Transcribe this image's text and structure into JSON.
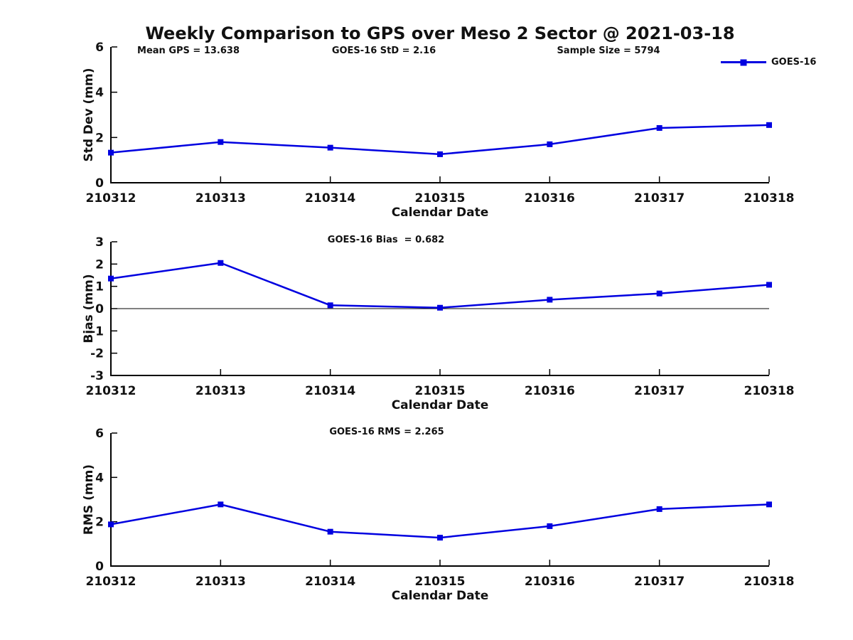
{
  "title": "Weekly Comparison to GPS over Meso 2 Sector @ 2021-03-18",
  "colors": {
    "line": "#0000E0",
    "axis": "#000000",
    "text": "#111111"
  },
  "legend": {
    "label": "GOES-16",
    "position": "top-right"
  },
  "annotations": {
    "mean_gps": "Mean GPS = 13.638",
    "std": "GOES-16 StD = 2.16",
    "sample_size": "Sample Size = 5794",
    "bias": "GOES-16 Bias  = 0.682",
    "rms": "GOES-16 RMS = 2.265"
  },
  "chart_data": [
    {
      "type": "line",
      "ylabel": "Std Dev (mm)",
      "xlabel": "Calendar Date",
      "categories": [
        "210312",
        "210313",
        "210314",
        "210315",
        "210316",
        "210317",
        "210318"
      ],
      "series": [
        {
          "name": "GOES-16",
          "values": [
            1.33,
            1.8,
            1.55,
            1.26,
            1.7,
            2.42,
            2.55
          ]
        }
      ],
      "ylim": [
        0,
        6
      ],
      "yticks": [
        0,
        2,
        4,
        6
      ],
      "grid": false,
      "zero_line": false,
      "legend_position": "top-right",
      "annotations": [
        "Mean GPS = 13.638",
        "GOES-16 StD = 2.16",
        "Sample Size = 5794"
      ]
    },
    {
      "type": "line",
      "ylabel": "Bias (mm)",
      "xlabel": "Calendar Date",
      "categories": [
        "210312",
        "210313",
        "210314",
        "210315",
        "210316",
        "210317",
        "210318"
      ],
      "series": [
        {
          "name": "GOES-16",
          "values": [
            1.35,
            2.05,
            0.15,
            0.04,
            0.4,
            0.68,
            1.07
          ]
        }
      ],
      "ylim": [
        -3,
        3
      ],
      "yticks": [
        -3,
        -2,
        -1,
        0,
        1,
        2,
        3
      ],
      "grid": false,
      "zero_line": true,
      "annotations": [
        "GOES-16 Bias  = 0.682"
      ]
    },
    {
      "type": "line",
      "ylabel": "RMS (mm)",
      "xlabel": "Calendar Date",
      "categories": [
        "210312",
        "210313",
        "210314",
        "210315",
        "210316",
        "210317",
        "210318"
      ],
      "series": [
        {
          "name": "GOES-16",
          "values": [
            1.88,
            2.78,
            1.55,
            1.28,
            1.8,
            2.57,
            2.78
          ]
        }
      ],
      "ylim": [
        0,
        6
      ],
      "yticks": [
        0,
        2,
        4,
        6
      ],
      "grid": false,
      "zero_line": false,
      "annotations": [
        "GOES-16 RMS = 2.265"
      ]
    }
  ]
}
